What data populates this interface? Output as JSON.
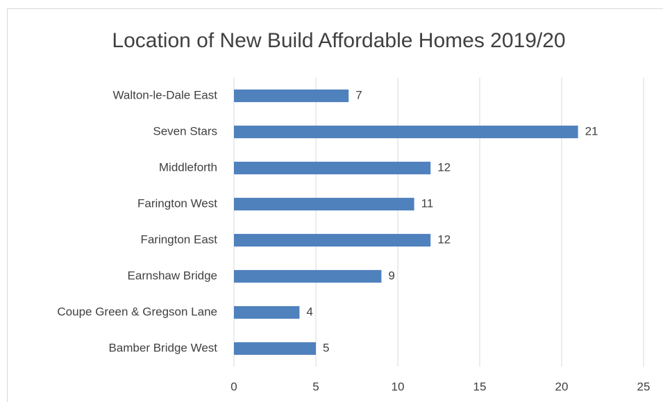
{
  "chart_data": {
    "type": "bar",
    "horizontal": true,
    "title": "Location of New Build Affordable Homes 2019/20",
    "categories": [
      "Walton-le-Dale East",
      "Seven Stars",
      "Middleforth",
      "Farington West",
      "Farington East",
      "Earnshaw Bridge",
      "Coupe Green & Gregson Lane",
      "Bamber Bridge West"
    ],
    "values": [
      7,
      21,
      12,
      11,
      12,
      9,
      4,
      5
    ],
    "color": "#4f81bd",
    "xlim": [
      0,
      25
    ],
    "xticks": [
      0,
      5,
      10,
      15,
      20,
      25
    ],
    "grid": true
  }
}
